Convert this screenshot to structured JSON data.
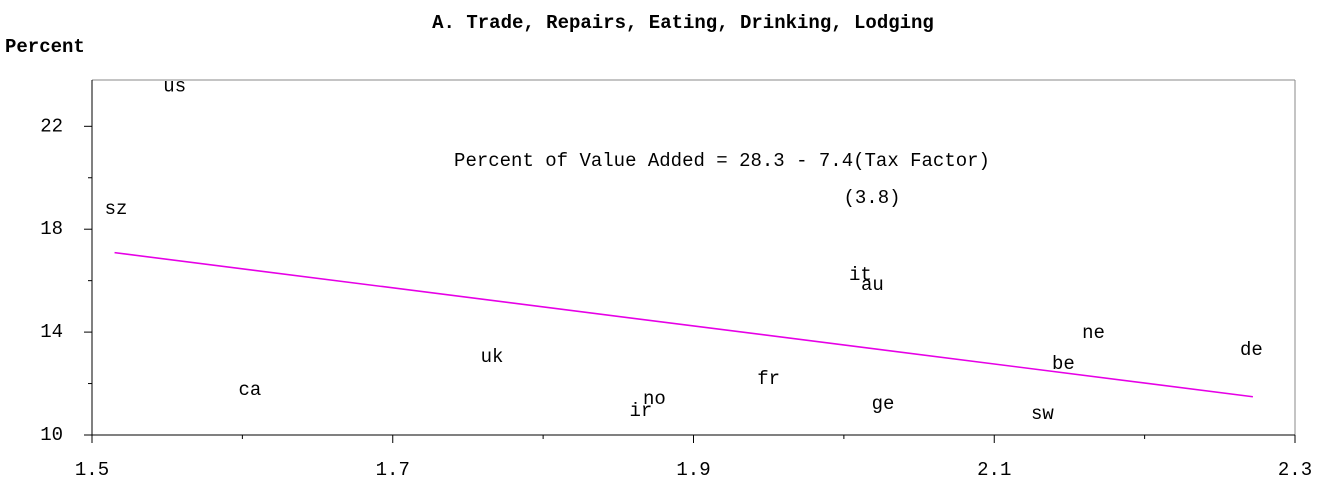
{
  "chart_data": {
    "type": "scatter",
    "title": "A. Trade, Repairs, Eating, Drinking, Lodging",
    "y_label": "Percent",
    "annotations": [
      "Percent of Value Added = 28.3 - 7.4(Tax Factor)",
      "(3.8)"
    ],
    "labels": [
      "us",
      "sz",
      "ca",
      "uk",
      "no",
      "ir",
      "fr",
      "it",
      "au",
      "ge",
      "be",
      "ne",
      "sw",
      "de"
    ],
    "x": [
      1.555,
      1.516,
      1.605,
      1.766,
      1.874,
      1.865,
      1.95,
      2.011,
      2.019,
      2.026,
      2.146,
      2.166,
      2.132,
      2.271
    ],
    "values": [
      23.54,
      18.79,
      11.75,
      13.03,
      11.4,
      10.93,
      12.18,
      16.23,
      15.84,
      11.21,
      12.76,
      13.97,
      10.82,
      13.31
    ],
    "fit": {
      "intercept": 28.3,
      "slope": -7.4,
      "xrange": [
        1.515,
        2.272
      ],
      "color": "#e600e6"
    },
    "xlim": [
      1.5,
      2.3
    ],
    "xticks": [
      1.5,
      1.7,
      1.9,
      2.1,
      2.3
    ],
    "xminorticks": [
      1.6,
      1.8,
      2.0,
      2.2
    ],
    "ylim": [
      10,
      23.8
    ],
    "yticks": [
      10,
      14,
      18,
      22
    ],
    "yminorticks": [
      12,
      16,
      20
    ]
  }
}
